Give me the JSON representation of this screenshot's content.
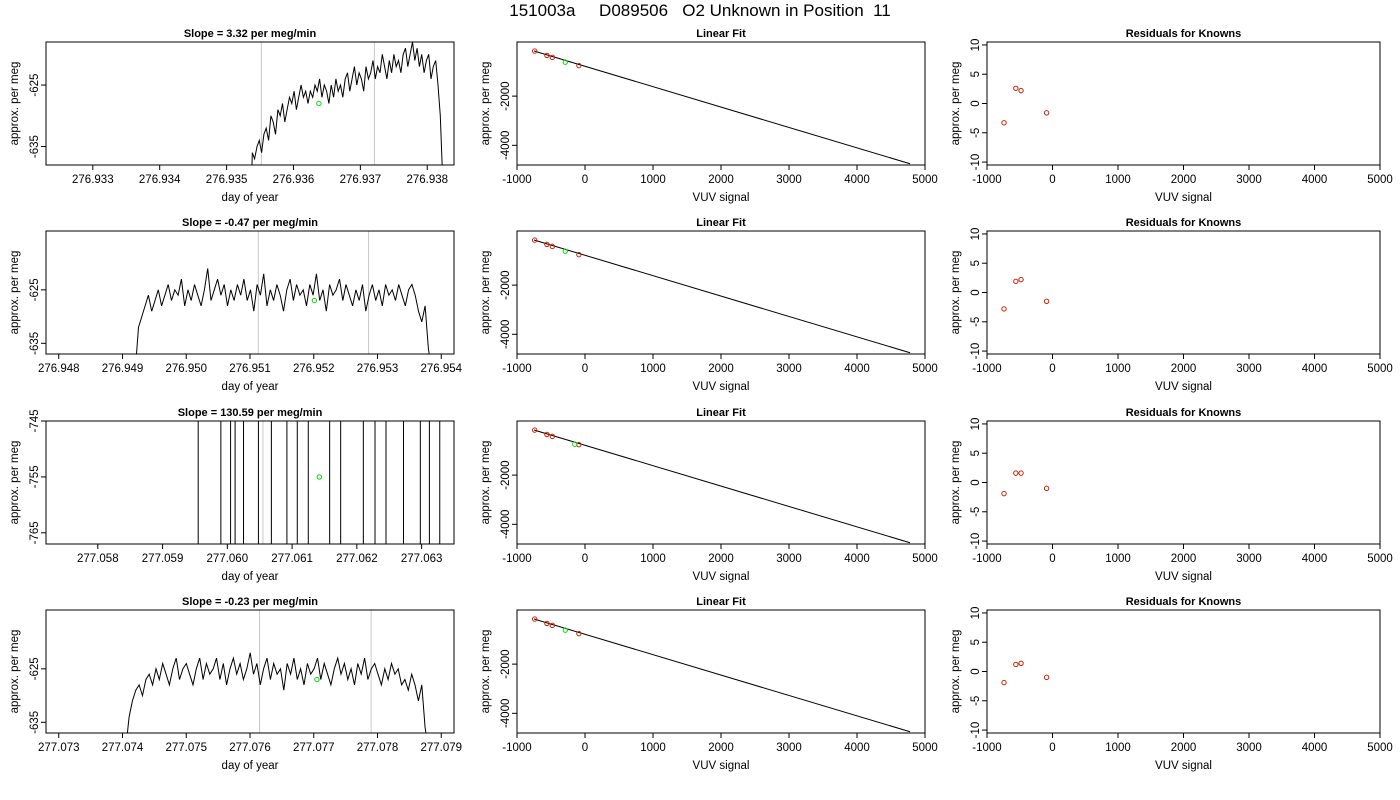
{
  "figure_title": "151003a     D089506   O2 Unknown in Position  11",
  "colors": {
    "series_line": "#000000",
    "unknown_point": "#00dd00",
    "known_point": "#cc2200",
    "marker_lines": "#c8c8c8"
  },
  "chart_data": [
    {
      "panel": "time-series",
      "type": "line",
      "title": "Slope =  3.32  per meg/min",
      "xlabel": "day of year",
      "ylabel": "approx. per meg",
      "xlim": [
        276.9323,
        276.9384
      ],
      "ylim": [
        -638,
        -618
      ],
      "xticks": [
        "276.933",
        "276.934",
        "276.935",
        "276.936",
        "276.937",
        "276.938"
      ],
      "yticks": [
        "-625",
        "-635"
      ],
      "x_start": 276.93535,
      "x_end": 276.93823,
      "y": [
        -650,
        -636,
        -637,
        -635,
        -634,
        -636,
        -633,
        -632,
        -634,
        -630,
        -631,
        -633,
        -629,
        -630,
        -628,
        -631,
        -629,
        -627,
        -628,
        -626,
        -629,
        -627,
        -625,
        -627,
        -626,
        -628,
        -626,
        -627,
        -625,
        -626,
        -624,
        -627,
        -625,
        -626,
        -628,
        -625,
        -627,
        -624,
        -626,
        -625,
        -627,
        -624,
        -623,
        -626,
        -624,
        -622,
        -625,
        -623,
        -624,
        -626,
        -622,
        -624,
        -623,
        -621,
        -624,
        -622,
        -623,
        -620,
        -622,
        -624,
        -621,
        -623,
        -620,
        -622,
        -621,
        -623,
        -620,
        -619,
        -622,
        -620,
        -618,
        -621,
        -619,
        -622,
        -620,
        -623,
        -621,
        -620,
        -624,
        -622,
        -621,
        -625,
        -630,
        -640
      ],
      "vlines": [
        276.93552,
        276.93721
      ],
      "unknown_point": {
        "x": 276.93638,
        "y": -628
      }
    },
    {
      "panel": "linear-fit",
      "type": "scatter",
      "title": "Linear Fit",
      "xlabel": "VUV signal",
      "ylabel": "approx. per meg",
      "xlim": [
        -1000,
        5000
      ],
      "ylim": [
        -4800,
        200
      ],
      "xticks": [
        "-1000",
        "0",
        "1000",
        "2000",
        "3000",
        "4000",
        "5000"
      ],
      "yticks": [
        "-2000",
        "-4000"
      ],
      "fit_line": {
        "x": [
          -750,
          4780
        ],
        "y": [
          -165,
          -4750
        ]
      },
      "knowns": {
        "x": [
          -740,
          -560,
          -480,
          -90
        ],
        "y": [
          -170,
          -345,
          -425,
          -760
        ]
      },
      "unknown": {
        "x": -290,
        "y": -620
      }
    },
    {
      "panel": "residuals",
      "type": "scatter",
      "title": "Residuals for Knowns",
      "xlabel": "VUV signal",
      "ylabel": "approx. per meg",
      "xlim": [
        -1000,
        5000
      ],
      "ylim": [
        -10.5,
        10.5
      ],
      "xticks": [
        "-1000",
        "0",
        "1000",
        "2000",
        "3000",
        "4000",
        "5000"
      ],
      "yticks": [
        "10",
        "5",
        "0",
        "-5",
        "-10"
      ],
      "knowns": {
        "x": [
          -740,
          -560,
          -480,
          -90
        ],
        "y": [
          -3.3,
          2.6,
          2.2,
          -1.6
        ]
      }
    },
    {
      "panel": "time-series",
      "type": "line",
      "title": "Slope =  -0.47  per meg/min",
      "xlabel": "day of year",
      "ylabel": "approx. per meg",
      "xlim": [
        276.9478,
        276.9542
      ],
      "ylim": [
        -637,
        -614
      ],
      "xticks": [
        "276.948",
        "276.949",
        "276.950",
        "276.951",
        "276.952",
        "276.953",
        "276.954"
      ],
      "yticks": [
        "-625",
        "-635"
      ],
      "x_start": 276.9492,
      "x_end": 276.95385,
      "y": [
        -640,
        -632,
        -630,
        -628,
        -626,
        -629,
        -627,
        -625,
        -628,
        -626,
        -624,
        -627,
        -625,
        -626,
        -623,
        -628,
        -625,
        -627,
        -624,
        -626,
        -628,
        -625,
        -621,
        -627,
        -625,
        -623,
        -626,
        -624,
        -628,
        -625,
        -627,
        -624,
        -626,
        -623,
        -627,
        -625,
        -629,
        -624,
        -626,
        -622,
        -628,
        -625,
        -627,
        -624,
        -626,
        -629,
        -625,
        -623,
        -627,
        -624,
        -626,
        -625,
        -628,
        -624,
        -626,
        -622,
        -627,
        -625,
        -629,
        -624,
        -626,
        -625,
        -623,
        -627,
        -624,
        -626,
        -628,
        -625,
        -627,
        -624,
        -629,
        -626,
        -624,
        -627,
        -625,
        -628,
        -624,
        -626,
        -625,
        -627,
        -624,
        -626,
        -628,
        -625,
        -624,
        -626,
        -629,
        -631,
        -628,
        -636,
        -640
      ],
      "vlines": [
        276.95113,
        276.95286
      ],
      "unknown_point": {
        "x": 276.95201,
        "y": -627
      }
    },
    {
      "panel": "linear-fit",
      "type": "scatter",
      "title": "Linear Fit",
      "xlabel": "VUV signal",
      "ylabel": "approx. per meg",
      "xlim": [
        -1000,
        5000
      ],
      "ylim": [
        -4800,
        200
      ],
      "xticks": [
        "-1000",
        "0",
        "1000",
        "2000",
        "3000",
        "4000",
        "5000"
      ],
      "yticks": [
        "-2000",
        "-4000"
      ],
      "fit_line": {
        "x": [
          -750,
          4780
        ],
        "y": [
          -165,
          -4750
        ]
      },
      "knowns": {
        "x": [
          -740,
          -560,
          -480,
          -90
        ],
        "y": [
          -170,
          -345,
          -425,
          -760
        ]
      },
      "unknown": {
        "x": -290,
        "y": -620
      }
    },
    {
      "panel": "residuals",
      "type": "scatter",
      "title": "Residuals for Knowns",
      "xlabel": "VUV signal",
      "ylabel": "approx. per meg",
      "xlim": [
        -1000,
        5000
      ],
      "ylim": [
        -10.5,
        10.5
      ],
      "xticks": [
        "-1000",
        "0",
        "1000",
        "2000",
        "3000",
        "4000",
        "5000"
      ],
      "yticks": [
        "10",
        "5",
        "0",
        "-5",
        "-10"
      ],
      "knowns": {
        "x": [
          -740,
          -560,
          -480,
          -90
        ],
        "y": [
          -2.8,
          1.9,
          2.2,
          -1.5
        ]
      }
    },
    {
      "panel": "time-series",
      "type": "line",
      "title": "Slope =  130.59  per meg/min",
      "xlabel": "day of year",
      "ylabel": "approx. per meg",
      "xlim": [
        277.0572,
        277.0635
      ],
      "ylim": [
        -767,
        -745
      ],
      "xticks": [
        "277.058",
        "277.059",
        "277.060",
        "277.061",
        "277.062",
        "277.063"
      ],
      "yticks": [
        "-745",
        "-755",
        "-765"
      ],
      "vertical_segments": [
        277.05955,
        277.0599,
        277.06005,
        277.06012,
        277.06025,
        277.06048,
        277.06068,
        277.06092,
        277.06108,
        277.06125,
        277.06158,
        277.06175,
        277.0621,
        277.06228,
        277.06245,
        277.06272,
        277.06298,
        277.06312,
        277.06328
      ],
      "vlines": [
        277.06055,
        277.06228
      ],
      "unknown_point": {
        "x": 277.06142,
        "y": -755
      }
    },
    {
      "panel": "linear-fit",
      "type": "scatter",
      "title": "Linear Fit",
      "xlabel": "VUV signal",
      "ylabel": "approx. per meg",
      "xlim": [
        -1000,
        5000
      ],
      "ylim": [
        -4800,
        200
      ],
      "xticks": [
        "-1000",
        "0",
        "1000",
        "2000",
        "3000",
        "4000",
        "5000"
      ],
      "yticks": [
        "-2000",
        "-4000"
      ],
      "fit_line": {
        "x": [
          -750,
          4780
        ],
        "y": [
          -165,
          -4750
        ]
      },
      "knowns": {
        "x": [
          -740,
          -560,
          -480,
          -90
        ],
        "y": [
          -170,
          -345,
          -425,
          -760
        ]
      },
      "unknown": {
        "x": -150,
        "y": -745
      }
    },
    {
      "panel": "residuals",
      "type": "scatter",
      "title": "Residuals for Knowns",
      "xlabel": "VUV signal",
      "ylabel": "approx. per meg",
      "xlim": [
        -1000,
        5000
      ],
      "ylim": [
        -10.5,
        10.5
      ],
      "xticks": [
        "-1000",
        "0",
        "1000",
        "2000",
        "3000",
        "4000",
        "5000"
      ],
      "yticks": [
        "10",
        "5",
        "0",
        "-5",
        "-10"
      ],
      "knowns": {
        "x": [
          -740,
          -560,
          -480,
          -90
        ],
        "y": [
          -1.9,
          1.6,
          1.6,
          -1.0
        ]
      }
    },
    {
      "panel": "time-series",
      "type": "line",
      "title": "Slope =  -0.23  per meg/min",
      "xlabel": "day of year",
      "ylabel": "approx. per meg",
      "xlim": [
        277.0728,
        277.0792
      ],
      "ylim": [
        -637,
        -614
      ],
      "xticks": [
        "277.073",
        "277.074",
        "277.075",
        "277.076",
        "277.077",
        "277.078",
        "277.079"
      ],
      "yticks": [
        "-625",
        "-635"
      ],
      "x_start": 277.07405,
      "x_end": 277.0788,
      "y": [
        -640,
        -634,
        -631,
        -629,
        -628,
        -630,
        -627,
        -626,
        -628,
        -625,
        -627,
        -624,
        -626,
        -628,
        -625,
        -623,
        -627,
        -625,
        -624,
        -626,
        -628,
        -625,
        -623,
        -627,
        -624,
        -626,
        -625,
        -623,
        -627,
        -624,
        -628,
        -625,
        -623,
        -626,
        -624,
        -627,
        -625,
        -622,
        -626,
        -624,
        -628,
        -625,
        -623,
        -627,
        -624,
        -626,
        -625,
        -629,
        -624,
        -626,
        -623,
        -627,
        -625,
        -628,
        -624,
        -626,
        -625,
        -623,
        -627,
        -624,
        -626,
        -628,
        -625,
        -623,
        -626,
        -624,
        -627,
        -625,
        -628,
        -624,
        -626,
        -623,
        -627,
        -625,
        -624,
        -626,
        -628,
        -625,
        -627,
        -624,
        -626,
        -625,
        -628,
        -627,
        -629,
        -626,
        -628,
        -631,
        -628,
        -636,
        -640
      ],
      "vlines": [
        277.07615,
        277.0779
      ],
      "unknown_point": {
        "x": 277.07705,
        "y": -627
      }
    },
    {
      "panel": "linear-fit",
      "type": "scatter",
      "title": "Linear Fit",
      "xlabel": "VUV signal",
      "ylabel": "approx. per meg",
      "xlim": [
        -1000,
        5000
      ],
      "ylim": [
        -4800,
        200
      ],
      "xticks": [
        "-1000",
        "0",
        "1000",
        "2000",
        "3000",
        "4000",
        "5000"
      ],
      "yticks": [
        "-2000",
        "-4000"
      ],
      "fit_line": {
        "x": [
          -750,
          4780
        ],
        "y": [
          -165,
          -4750
        ]
      },
      "knowns": {
        "x": [
          -740,
          -560,
          -480,
          -90
        ],
        "y": [
          -170,
          -345,
          -425,
          -760
        ]
      },
      "unknown": {
        "x": -290,
        "y": -620
      }
    },
    {
      "panel": "residuals",
      "type": "scatter",
      "title": "Residuals for Knowns",
      "xlabel": "VUV signal",
      "ylabel": "approx. per meg",
      "xlim": [
        -1000,
        5000
      ],
      "ylim": [
        -10.5,
        10.5
      ],
      "xticks": [
        "-1000",
        "0",
        "1000",
        "2000",
        "3000",
        "4000",
        "5000"
      ],
      "yticks": [
        "10",
        "5",
        "0",
        "-5",
        "-10"
      ],
      "knowns": {
        "x": [
          -740,
          -560,
          -480,
          -90
        ],
        "y": [
          -1.9,
          1.2,
          1.4,
          -1.0
        ]
      }
    }
  ]
}
